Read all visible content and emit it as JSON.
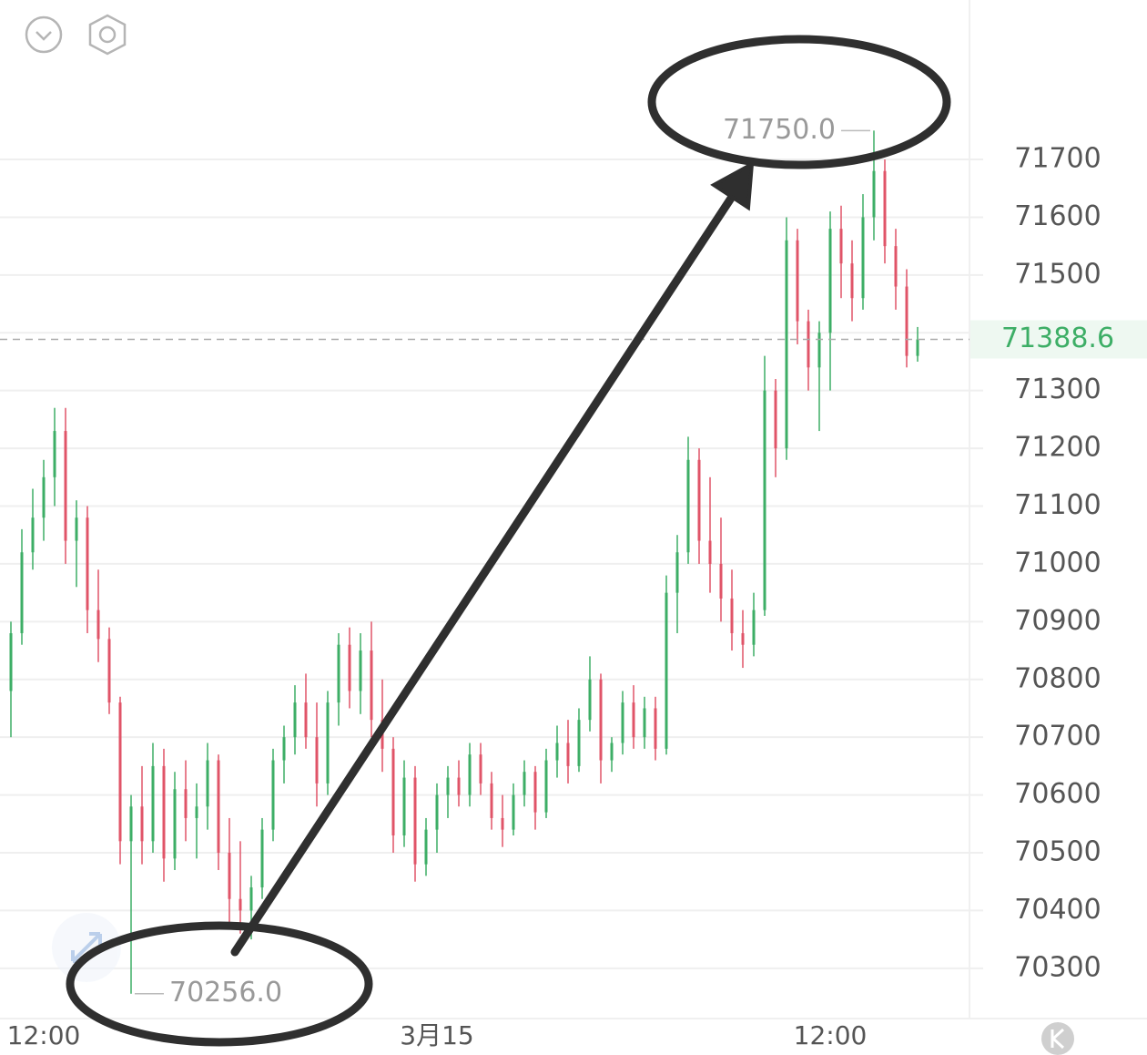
{
  "chart_data": {
    "type": "candlestick",
    "categories": [
      null,
      null,
      null,
      "12:00",
      null,
      null,
      null,
      null,
      null,
      null,
      null,
      null,
      null,
      null,
      null,
      null,
      null,
      null,
      null,
      null,
      null,
      null,
      null,
      null,
      null,
      null,
      null,
      null,
      null,
      null,
      null,
      null,
      null,
      null,
      null,
      null,
      null,
      null,
      null,
      "3月15",
      null,
      null,
      null,
      null,
      null,
      null,
      null,
      null,
      null,
      null,
      null,
      null,
      null,
      null,
      null,
      null,
      null,
      null,
      null,
      null,
      null,
      null,
      null,
      null,
      null,
      null,
      null,
      null,
      null,
      null,
      null,
      null,
      null,
      null,
      null,
      "12:00",
      null,
      null,
      null,
      null,
      null,
      null,
      null,
      null
    ],
    "open": [
      70780,
      70880,
      71020,
      71080,
      71150,
      71230,
      71040,
      71080,
      70920,
      70870,
      70760,
      70520,
      70580,
      70520,
      70650,
      70490,
      70610,
      70560,
      70580,
      70660,
      70500,
      70420,
      70400,
      70440,
      70540,
      70660,
      70700,
      70760,
      70700,
      70620,
      70760,
      70860,
      70780,
      70850,
      70730,
      70680,
      70530,
      70630,
      70480,
      70540,
      70600,
      70630,
      70600,
      70670,
      70620,
      70560,
      70540,
      70600,
      70640,
      70570,
      70660,
      70690,
      70650,
      70730,
      70800,
      70660,
      70690,
      70760,
      70700,
      70750,
      70680,
      70950,
      71020,
      71180,
      71040,
      71000,
      70940,
      70880,
      70860,
      70920,
      71300,
      71200,
      71560,
      71420,
      71340,
      71400,
      71580,
      71520,
      71460,
      71600,
      71680,
      71550,
      71480,
      71360
    ],
    "high": [
      70900,
      71060,
      71130,
      71180,
      71270,
      71270,
      71110,
      71100,
      70990,
      70890,
      70770,
      70600,
      70650,
      70690,
      70680,
      70640,
      70660,
      70620,
      70690,
      70670,
      70560,
      70520,
      70460,
      70560,
      70680,
      70720,
      70790,
      70810,
      70760,
      70780,
      70880,
      70890,
      70880,
      70900,
      70800,
      70700,
      70660,
      70650,
      70560,
      70620,
      70650,
      70660,
      70690,
      70690,
      70640,
      70600,
      70620,
      70660,
      70650,
      70680,
      70720,
      70730,
      70750,
      70840,
      70810,
      70700,
      70780,
      70790,
      70770,
      70770,
      70980,
      71050,
      71220,
      71200,
      71150,
      71080,
      70990,
      70920,
      70950,
      71360,
      71320,
      71600,
      71580,
      71440,
      71420,
      71610,
      71620,
      71560,
      71640,
      71750,
      71700,
      71580,
      71510,
      71410
    ],
    "low": [
      70700,
      70860,
      70990,
      71040,
      71100,
      71000,
      70960,
      70880,
      70830,
      70740,
      70480,
      70256,
      70480,
      70500,
      70450,
      70470,
      70520,
      70490,
      70540,
      70470,
      70380,
      70360,
      70350,
      70420,
      70520,
      70620,
      70670,
      70680,
      70580,
      70600,
      70720,
      70750,
      70740,
      70700,
      70640,
      70500,
      70510,
      70450,
      70460,
      70500,
      70560,
      70580,
      70580,
      70600,
      70540,
      70510,
      70530,
      70580,
      70540,
      70560,
      70630,
      70620,
      70640,
      70710,
      70620,
      70640,
      70670,
      70680,
      70680,
      70660,
      70670,
      70880,
      71000,
      71000,
      70950,
      70900,
      70850,
      70820,
      70840,
      70910,
      71150,
      71180,
      71380,
      71300,
      71230,
      71300,
      71460,
      71420,
      71440,
      71560,
      71520,
      71440,
      71340,
      71350
    ],
    "close": [
      70880,
      71020,
      71080,
      71150,
      71230,
      71040,
      71080,
      70920,
      70870,
      70760,
      70520,
      70580,
      70520,
      70650,
      70490,
      70610,
      70560,
      70580,
      70660,
      70500,
      70420,
      70400,
      70440,
      70540,
      70660,
      70700,
      70760,
      70700,
      70620,
      70760,
      70860,
      70780,
      70850,
      70730,
      70680,
      70530,
      70630,
      70480,
      70540,
      70600,
      70630,
      70600,
      70670,
      70620,
      70560,
      70540,
      70600,
      70640,
      70570,
      70660,
      70690,
      70650,
      70730,
      70800,
      70660,
      70690,
      70760,
      70700,
      70750,
      70680,
      70950,
      71020,
      71180,
      71040,
      71000,
      70940,
      70880,
      70860,
      70920,
      71300,
      71200,
      71560,
      71420,
      71340,
      71400,
      71580,
      71520,
      71460,
      71600,
      71680,
      71550,
      71480,
      71360,
      71388.6
    ],
    "up_color": "#3dae66",
    "down_color": "#e05468",
    "ylim": [
      70213,
      71976
    ],
    "yticks": [
      70300,
      70400,
      70500,
      70600,
      70700,
      70800,
      70900,
      71000,
      71100,
      71200,
      71300,
      71400,
      71500,
      71600,
      71700
    ],
    "hidden_yticks": [
      71400
    ],
    "grid": true,
    "last_price": 71388.6,
    "max_marker": {
      "value": 71750,
      "label": "71750.0",
      "index": 79
    },
    "min_marker": {
      "value": 70256,
      "label": "70256.0",
      "index": 11
    }
  }
}
